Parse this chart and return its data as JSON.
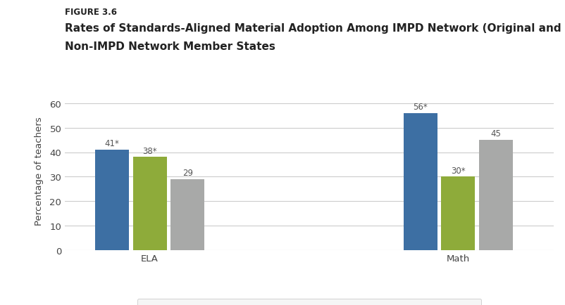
{
  "figure_label": "FIGURE 3.6",
  "title_line1": "Rates of Standards-Aligned Material Adoption Among IMPD Network (Original and New) and",
  "title_line2": "Non-IMPD Network Member States",
  "categories": [
    "ELA",
    "Math"
  ],
  "series": {
    "Original IMPD Network\nstate": [
      41,
      56
    ],
    "New IMPD Network\nmember state": [
      38,
      30
    ],
    "Non-IMPD Network\nmember state": [
      29,
      45
    ]
  },
  "labels": {
    "Original IMPD Network\nstate": [
      "41*",
      "56*"
    ],
    "New IMPD Network\nmember state": [
      "38*",
      "30*"
    ],
    "Non-IMPD Network\nmember state": [
      "29",
      "45"
    ]
  },
  "colors": {
    "Original IMPD Network\nstate": "#3D6FA3",
    "New IMPD Network\nmember state": "#8EAB3A",
    "Non-IMPD Network\nmember state": "#A8A9A8"
  },
  "ylabel": "Percentage of teachers",
  "ylim": [
    0,
    65
  ],
  "yticks": [
    0,
    10,
    20,
    30,
    40,
    50,
    60
  ],
  "bar_width": 0.22,
  "background_color": "#FFFFFF",
  "grid_color": "#CCCCCC",
  "figure_label_fontsize": 8.5,
  "title_fontsize": 11,
  "axis_label_fontsize": 9.5,
  "tick_fontsize": 9.5,
  "bar_label_fontsize": 8.5,
  "legend_fontsize": 8.5
}
